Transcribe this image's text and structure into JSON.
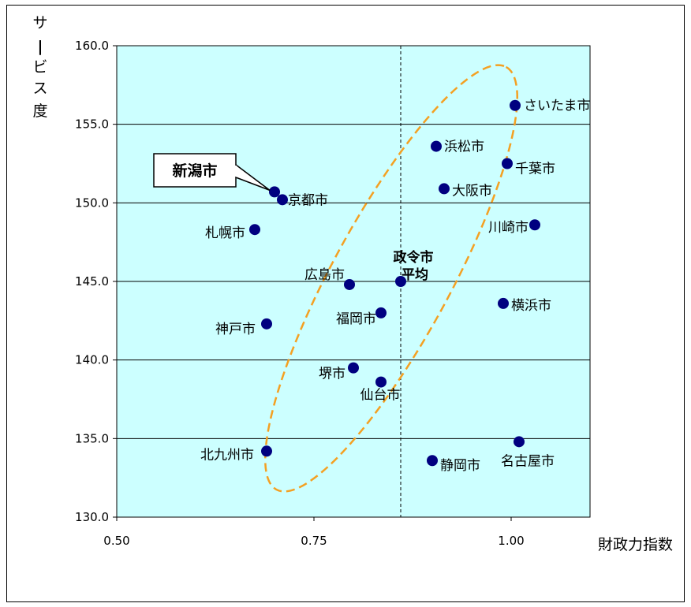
{
  "chart_data": {
    "type": "scatter",
    "xlabel": "財政力指数",
    "ylabel": "サービス度",
    "xlim": [
      0.5,
      1.1
    ],
    "ylim": [
      130.0,
      160.0
    ],
    "xticks": [
      "0.50",
      "0.75",
      "1.00"
    ],
    "yticks": [
      "130.0",
      "135.0",
      "140.0",
      "145.0",
      "150.0",
      "155.0",
      "160.0"
    ],
    "grid": "horizontal",
    "points": [
      {
        "label": "さいたま市",
        "x": 1.005,
        "y": 156.2
      },
      {
        "label": "浜松市",
        "x": 0.905,
        "y": 153.6
      },
      {
        "label": "千葉市",
        "x": 0.995,
        "y": 152.5
      },
      {
        "label": "新潟市",
        "x": 0.7,
        "y": 150.7
      },
      {
        "label": "京都市",
        "x": 0.71,
        "y": 150.2
      },
      {
        "label": "大阪市",
        "x": 0.915,
        "y": 150.9
      },
      {
        "label": "札幌市",
        "x": 0.675,
        "y": 148.3
      },
      {
        "label": "川崎市",
        "x": 1.03,
        "y": 148.6
      },
      {
        "label": "広島市",
        "x": 0.795,
        "y": 144.8
      },
      {
        "label": "政令市平均",
        "x": 0.86,
        "y": 145.0
      },
      {
        "label": "横浜市",
        "x": 0.99,
        "y": 143.6
      },
      {
        "label": "福岡市",
        "x": 0.835,
        "y": 143.0
      },
      {
        "label": "神戸市",
        "x": 0.69,
        "y": 142.3
      },
      {
        "label": "堺市",
        "x": 0.8,
        "y": 139.5
      },
      {
        "label": "仙台市",
        "x": 0.835,
        "y": 138.6
      },
      {
        "label": "名古屋市",
        "x": 1.01,
        "y": 134.8
      },
      {
        "label": "北九州市",
        "x": 0.69,
        "y": 134.2
      },
      {
        "label": "静岡市",
        "x": 0.9,
        "y": 133.6
      }
    ],
    "average_line_x": 0.86,
    "average_label_lines": [
      "政令市",
      "平均"
    ],
    "highlight_label": "新潟市"
  },
  "colors": {
    "plot_bg": "#ccffff",
    "marker": "#000080",
    "ellipse": "#f4a022",
    "grid": "#000000"
  }
}
